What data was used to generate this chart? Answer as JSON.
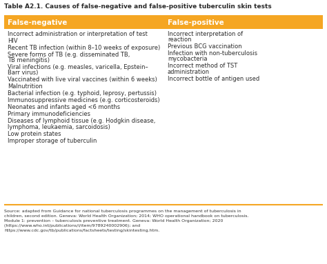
{
  "title": "Table A2.1. Causes of false-negative and false-positive tuberculin skin tests",
  "header_bg": "#F5A623",
  "header_text_color": "#FFFFFF",
  "table_bg": "#FFFFFF",
  "border_color": "#F5A623",
  "col1_header": "False-negative",
  "col2_header": "False-positive",
  "col1_items": [
    "Incorrect administration or interpretation of test",
    "HIV",
    "Recent TB infection (within 8–10 weeks of exposure)",
    "Severe forms of TB (e.g. disseminated TB,\nTB meningitis)",
    "Viral infections (e.g. measles, varicella, Epstein–\nBarr virus)",
    "Vaccinated with live viral vaccines (within 6 weeks)",
    "Malnutrition",
    "Bacterial infection (e.g. typhoid, leprosy, pertussis)",
    "Immunosuppressive medicines (e.g. corticosteroids)",
    "Neonates and infants aged <6 months",
    "Primary immunodeficiencies",
    "Diseases of lymphoid tissue (e.g. Hodgkin disease,\nlymphoma, leukaemia, sarcoidosis)",
    "Low protein states",
    "Improper storage of tuberculin"
  ],
  "col2_items": [
    "Incorrect interpretation of\nreaction",
    "Previous BCG vaccination",
    "Infection with non-tuberculosis\nmycobacteria",
    "Incorrect method of TST\nadministration",
    "Incorrect bottle of antigen used"
  ],
  "source_text": "Source: adapted from Guidance for national tuberculosis programmes on the management of tuberculosis in children, second edition. Geneva: World Health Organization; 2014; WHO operational handbook on tuberculosis. Module 1: prevention – tuberculosis preventive treatment. Geneva: World Health Organization; 2020 (https://www.who.int/publications/i/item/9789240002906); and https://www.cdc.gov/tb/publications/factsheets/testing/skintesting.htm.",
  "text_color": "#2a2a2a",
  "source_color": "#333333",
  "figsize": [
    4.74,
    3.83
  ],
  "dpi": 100
}
